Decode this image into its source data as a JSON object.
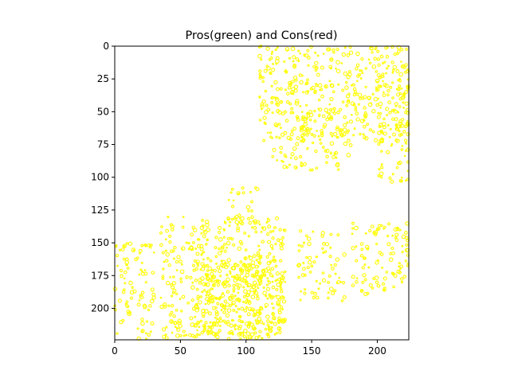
{
  "chart_data": {
    "type": "heatmap",
    "title": "Pros(green) and Cons(red)",
    "xlabel": "",
    "ylabel": "",
    "xlim": [
      0,
      224
    ],
    "ylim": [
      224,
      0
    ],
    "y_axis_inverted": true,
    "grid": false,
    "legend": "none",
    "xticks": [
      0,
      50,
      100,
      150,
      200
    ],
    "yticks": [
      0,
      25,
      50,
      75,
      100,
      125,
      150,
      175,
      200
    ],
    "mark_color": "#ffff00",
    "background_color": "#ffffff",
    "regions": [
      {
        "x": [
          110,
          225
        ],
        "y": [
          0,
          75
        ],
        "density": 0.55
      },
      {
        "x": [
          120,
          180
        ],
        "y": [
          50,
          95
        ],
        "density": 0.35
      },
      {
        "x": [
          200,
          225
        ],
        "y": [
          60,
          105
        ],
        "density": 0.45
      },
      {
        "x": [
          210,
          225
        ],
        "y": [
          15,
          45
        ],
        "density": 0.5
      },
      {
        "x": [
          35,
          130
        ],
        "y": [
          130,
          224
        ],
        "density": 0.55
      },
      {
        "x": [
          60,
          130
        ],
        "y": [
          160,
          220
        ],
        "density": 0.65
      },
      {
        "x": [
          85,
          110
        ],
        "y": [
          105,
          135
        ],
        "density": 0.3
      },
      {
        "x": [
          0,
          30
        ],
        "y": [
          150,
          224
        ],
        "density": 0.45
      },
      {
        "x": [
          140,
          175
        ],
        "y": [
          140,
          195
        ],
        "density": 0.4
      },
      {
        "x": [
          180,
          225
        ],
        "y": [
          135,
          190
        ],
        "density": 0.45
      }
    ]
  }
}
